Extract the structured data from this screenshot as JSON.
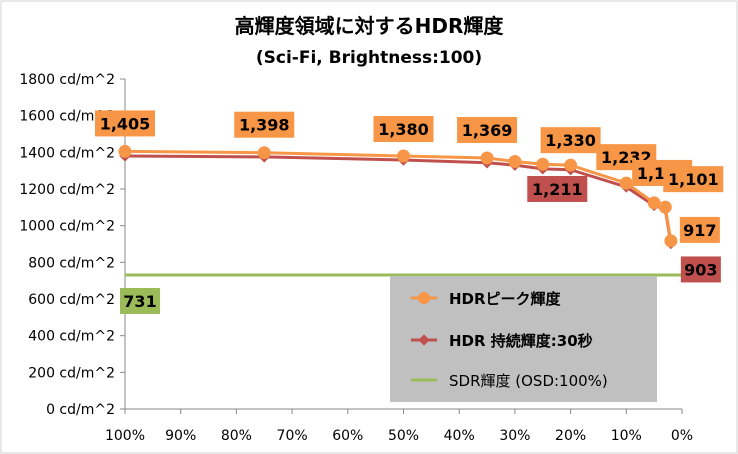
{
  "chart_data": {
    "type": "line",
    "title": "高輝度領域に対するHDR輝度",
    "subtitle": "(Sci-Fi, Brightness:100)",
    "x_ticks": [
      "100%",
      "90%",
      "80%",
      "70%",
      "60%",
      "50%",
      "40%",
      "30%",
      "20%",
      "10%",
      "0%"
    ],
    "x_range": [
      100,
      0
    ],
    "y_ticks": [
      "0 cd/m^2",
      "200 cd/m^2",
      "400 cd/m^2",
      "600 cd/m^2",
      "800 cd/m^2",
      "1000 cd/m^2",
      "1200 cd/m^2",
      "1400 cd/m^2",
      "1600 cd/m^2",
      "1800 cd/m^2"
    ],
    "ylim": [
      0,
      1800
    ],
    "grid": false,
    "legend_position": "bottom-right",
    "series": [
      {
        "name": "HDRピーク輝度",
        "color": "#f79646",
        "marker": "circle",
        "x": [
          100,
          75,
          50,
          35,
          30,
          25,
          20,
          10,
          5,
          3,
          2
        ],
        "y": [
          1405,
          1398,
          1380,
          1369,
          1350,
          1335,
          1330,
          1232,
          1124,
          1101,
          917
        ]
      },
      {
        "name": "HDR 持続輝度:30秒",
        "color": "#c0504d",
        "marker": "diamond",
        "x": [
          100,
          75,
          50,
          35,
          30,
          25,
          20,
          10,
          5,
          3,
          2
        ],
        "y": [
          1380,
          1375,
          1358,
          1343,
          1330,
          1310,
          1305,
          1211,
          1110,
          1090,
          903
        ]
      },
      {
        "name": "SDR輝度 (OSD:100%)",
        "color": "#9bbb59",
        "marker": "none",
        "x": [
          100,
          0
        ],
        "y": [
          731,
          731
        ]
      }
    ],
    "annotations": [
      {
        "text": "1,405",
        "x": 100,
        "y": 1405,
        "series": 0
      },
      {
        "text": "1,398",
        "x": 75,
        "y": 1398,
        "series": 0
      },
      {
        "text": "1,380",
        "x": 50,
        "y": 1380,
        "series": 0
      },
      {
        "text": "1,369",
        "x": 35,
        "y": 1369,
        "series": 0
      },
      {
        "text": "1,330",
        "x": 20,
        "y": 1330,
        "series": 0
      },
      {
        "text": "1,232",
        "x": 10,
        "y": 1232,
        "series": 0
      },
      {
        "text": "1,124",
        "x": 5,
        "y": 1124,
        "series": 0
      },
      {
        "text": "1,101",
        "x": 3,
        "y": 1101,
        "series": 0
      },
      {
        "text": "917",
        "x": 2,
        "y": 917,
        "series": 0
      },
      {
        "text": "1,211",
        "x": 10,
        "y": 1211,
        "series": 1
      },
      {
        "text": "903",
        "x": 2,
        "y": 903,
        "series": 1
      },
      {
        "text": "731",
        "x": 100,
        "y": 731,
        "series": 2
      }
    ]
  }
}
